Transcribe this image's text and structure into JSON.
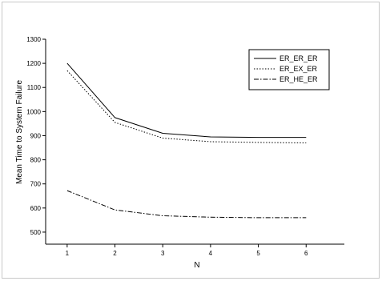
{
  "chart_data": {
    "type": "line",
    "title": "",
    "xlabel": "N",
    "ylabel": "Mean Time to System Failure",
    "x": [
      1,
      2,
      3,
      4,
      5,
      6
    ],
    "xlim": [
      0.55,
      6.8
    ],
    "ylim": [
      450,
      1300
    ],
    "yticks": [
      500,
      600,
      700,
      800,
      900,
      1000,
      1100,
      1200,
      1300
    ],
    "grid": false,
    "legend_position": "top-right",
    "series": [
      {
        "name": "ER_ER_ER",
        "values": [
          1200,
          975,
          910,
          895,
          893,
          893
        ],
        "dash": "",
        "color": "#000000"
      },
      {
        "name": "ER_EX_ER",
        "values": [
          1170,
          955,
          890,
          875,
          872,
          870
        ],
        "dash": "1.5,2",
        "color": "#000000"
      },
      {
        "name": "ER_HE_ER",
        "values": [
          672,
          592,
          568,
          562,
          560,
          560
        ],
        "dash": "6,2,1.5,2",
        "color": "#000000"
      }
    ]
  }
}
